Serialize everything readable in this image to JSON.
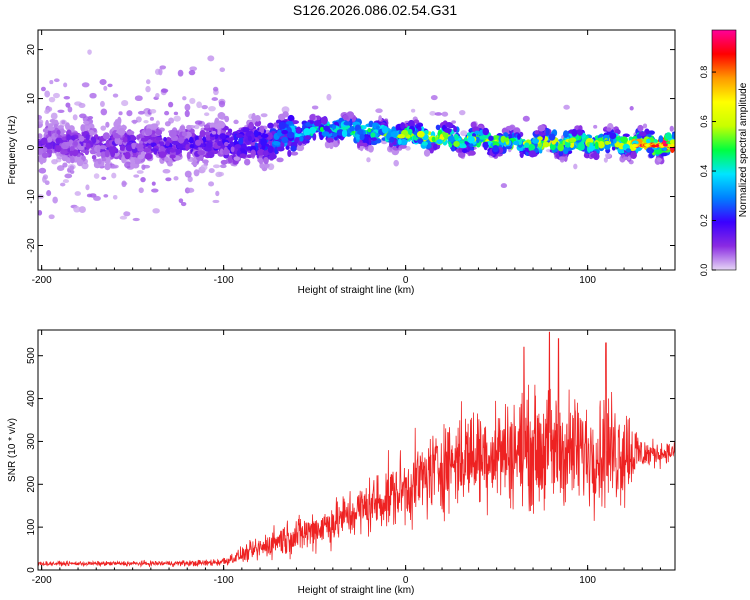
{
  "title": "S126.2026.086.02.54.G31",
  "chart_data": [
    {
      "type": "heatmap",
      "name": "spectrogram",
      "xlabel": "Height of straight line (km)",
      "ylabel": "Frequency (Hz)",
      "xlim": [
        -202,
        148
      ],
      "ylim": [
        -25,
        24
      ],
      "xticks": [
        -200,
        -100,
        0,
        100
      ],
      "yticks": [
        -20,
        -10,
        0,
        10,
        20
      ],
      "colorbar": {
        "label": "Normalized spectral amplitude",
        "range": [
          0,
          0.97
        ],
        "ticks": [
          0.0,
          0.2,
          0.4,
          0.6,
          0.8
        ],
        "colors": [
          "#e6d6f5",
          "#8a2be2",
          "#3a00ff",
          "#0080ff",
          "#00e5ff",
          "#00ff40",
          "#c8ff00",
          "#ffff00",
          "#ff9900",
          "#ff0000",
          "#ff0099"
        ]
      },
      "ridge": {
        "x": [
          -200,
          -150,
          -100,
          -80,
          -60,
          -40,
          -20,
          0,
          20,
          40,
          60,
          80,
          100,
          120,
          148
        ],
        "frequency": [
          1,
          0.5,
          1,
          1,
          3,
          4,
          3,
          2.5,
          2,
          1.5,
          1,
          1,
          1,
          1,
          0.5
        ],
        "peak_amplitude": [
          0.12,
          0.14,
          0.18,
          0.22,
          0.35,
          0.45,
          0.5,
          0.55,
          0.6,
          0.55,
          0.55,
          0.6,
          0.55,
          0.6,
          0.9
        ]
      }
    },
    {
      "type": "line",
      "name": "snr",
      "xlabel": "Height of straight line (km)",
      "ylabel": "SNR (10 * v/v)",
      "xlim": [
        -202,
        148
      ],
      "ylim": [
        0,
        560
      ],
      "xticks": [
        -200,
        -100,
        0,
        100
      ],
      "yticks": [
        0,
        100,
        200,
        300,
        400,
        500
      ],
      "color": "#ee2222",
      "x": [
        -202,
        -150,
        -110,
        -100,
        -90,
        -80,
        -70,
        -60,
        -50,
        -40,
        -30,
        -20,
        -10,
        0,
        10,
        20,
        30,
        40,
        60,
        80,
        100,
        120,
        130,
        148
      ],
      "y": [
        15,
        15,
        16,
        20,
        35,
        50,
        70,
        80,
        95,
        110,
        130,
        150,
        170,
        190,
        215,
        245,
        260,
        270,
        280,
        280,
        275,
        280,
        270,
        275
      ],
      "spread": [
        5,
        6,
        8,
        12,
        18,
        30,
        40,
        45,
        50,
        55,
        60,
        70,
        80,
        90,
        100,
        110,
        120,
        120,
        130,
        150,
        130,
        140,
        40,
        20
      ],
      "peaks": [
        {
          "x": 79,
          "y": 555
        },
        {
          "x": 84,
          "y": 540
        },
        {
          "x": 110,
          "y": 530
        },
        {
          "x": 65,
          "y": 520
        }
      ]
    }
  ]
}
